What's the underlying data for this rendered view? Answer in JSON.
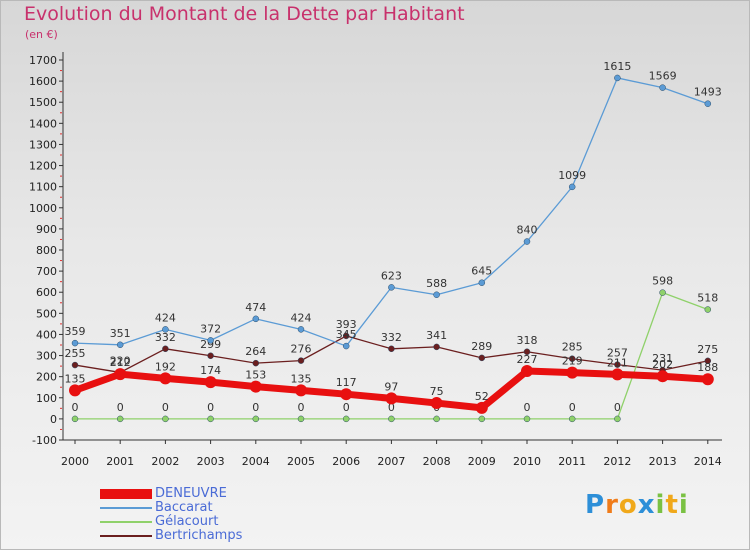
{
  "title": "Evolution du Montant de la Dette par Habitant",
  "unit": "(en €)",
  "logo": [
    "P",
    "r",
    "o",
    "x",
    "i",
    "t",
    "i"
  ],
  "chart_data": {
    "type": "line",
    "x": [
      "2000",
      "2001",
      "2002",
      "2003",
      "2004",
      "2005",
      "2006",
      "2007",
      "2008",
      "2009",
      "2010",
      "2011",
      "2012",
      "2013",
      "2014"
    ],
    "ylim": [
      -100,
      1700
    ],
    "yticks": [
      -100,
      0,
      100,
      200,
      300,
      400,
      500,
      600,
      700,
      800,
      900,
      1000,
      1100,
      1200,
      1300,
      1400,
      1500,
      1600,
      1700
    ],
    "grid": false,
    "legend_position": "bottom-left",
    "series": [
      {
        "name": "Bertrichamps",
        "color": "#6b1f1f",
        "values": [
          255,
          220,
          332,
          299,
          264,
          276,
          393,
          332,
          341,
          289,
          318,
          285,
          257,
          231,
          275
        ]
      },
      {
        "name": "Gélacourt",
        "color": "#8fd16a",
        "values": [
          0,
          0,
          0,
          0,
          0,
          0,
          0,
          0,
          0,
          0,
          0,
          0,
          0,
          598,
          518
        ]
      },
      {
        "name": "Baccarat",
        "color": "#5b9bd5",
        "values": [
          359,
          351,
          424,
          372,
          474,
          424,
          345,
          623,
          588,
          645,
          840,
          1099,
          1615,
          1569,
          1493
        ]
      },
      {
        "name": "DENEUVRE",
        "color": "#e81010",
        "values": [
          135,
          212,
          192,
          174,
          153,
          135,
          117,
          97,
          75,
          52,
          227,
          219,
          211,
          202,
          188
        ]
      }
    ],
    "data_labels": [
      {
        "series": "Bertrichamps",
        "labels": [
          "255",
          "220",
          "332",
          "299",
          "264",
          "276",
          "393",
          "332",
          "341",
          "289",
          "318",
          "285",
          "257",
          "231",
          "275"
        ]
      },
      {
        "series": "Gélacourt",
        "labels": [
          "0",
          "0",
          "0",
          "0",
          "0",
          "0",
          "0",
          "0",
          "0",
          "0",
          "0",
          "0",
          "0",
          "598",
          "518"
        ]
      },
      {
        "series": "Baccarat",
        "labels": [
          "359",
          "351",
          "424",
          "372",
          "474",
          "424",
          "345",
          "623",
          "588",
          "645",
          "840",
          "1099",
          "1615",
          "1569",
          "1493"
        ]
      },
      {
        "series": "DENEUVRE",
        "labels": [
          "135",
          "212",
          "192",
          "174",
          "153",
          "135",
          "117",
          "97",
          "75",
          "52",
          "227",
          "219",
          "211",
          "202",
          "188"
        ]
      }
    ],
    "legend": [
      "DENEUVRE",
      "Baccarat",
      "Gélacourt",
      "Bertrichamps"
    ]
  }
}
